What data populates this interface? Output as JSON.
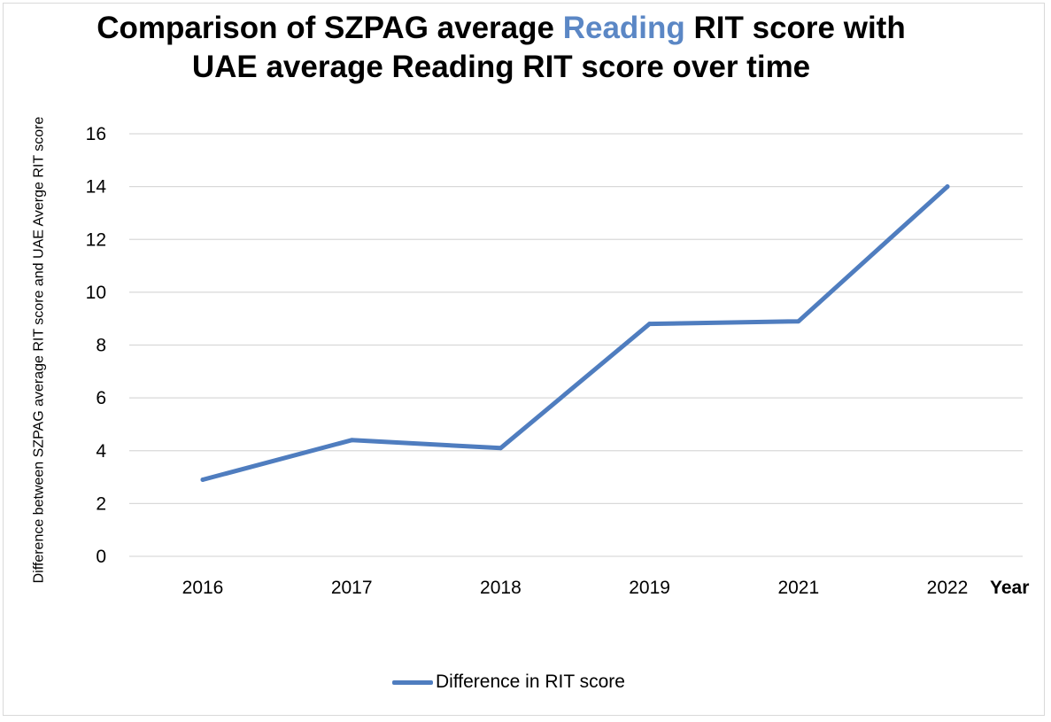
{
  "chart_data": {
    "type": "line",
    "title_parts": [
      "Comparison of SZPAG average ",
      "Reading",
      " RIT score with",
      "UAE average Reading RIT score over time"
    ],
    "ylabel": "Difference between SZPAG average RIT score and UAE Averge RIT score",
    "xlabel": "Year",
    "categories": [
      "2016",
      "2017",
      "2018",
      "2019",
      "2021",
      "2022"
    ],
    "y_ticks": [
      "0",
      "2",
      "4",
      "6",
      "8",
      "10",
      "12",
      "14",
      "16"
    ],
    "ylim": [
      0,
      16
    ],
    "grid": true,
    "legend_position": "bottom",
    "series": [
      {
        "name": "Difference in RIT score",
        "values": [
          2.9,
          4.4,
          4.1,
          8.8,
          8.9,
          14.0
        ],
        "color": "#4f7dbf"
      }
    ]
  }
}
